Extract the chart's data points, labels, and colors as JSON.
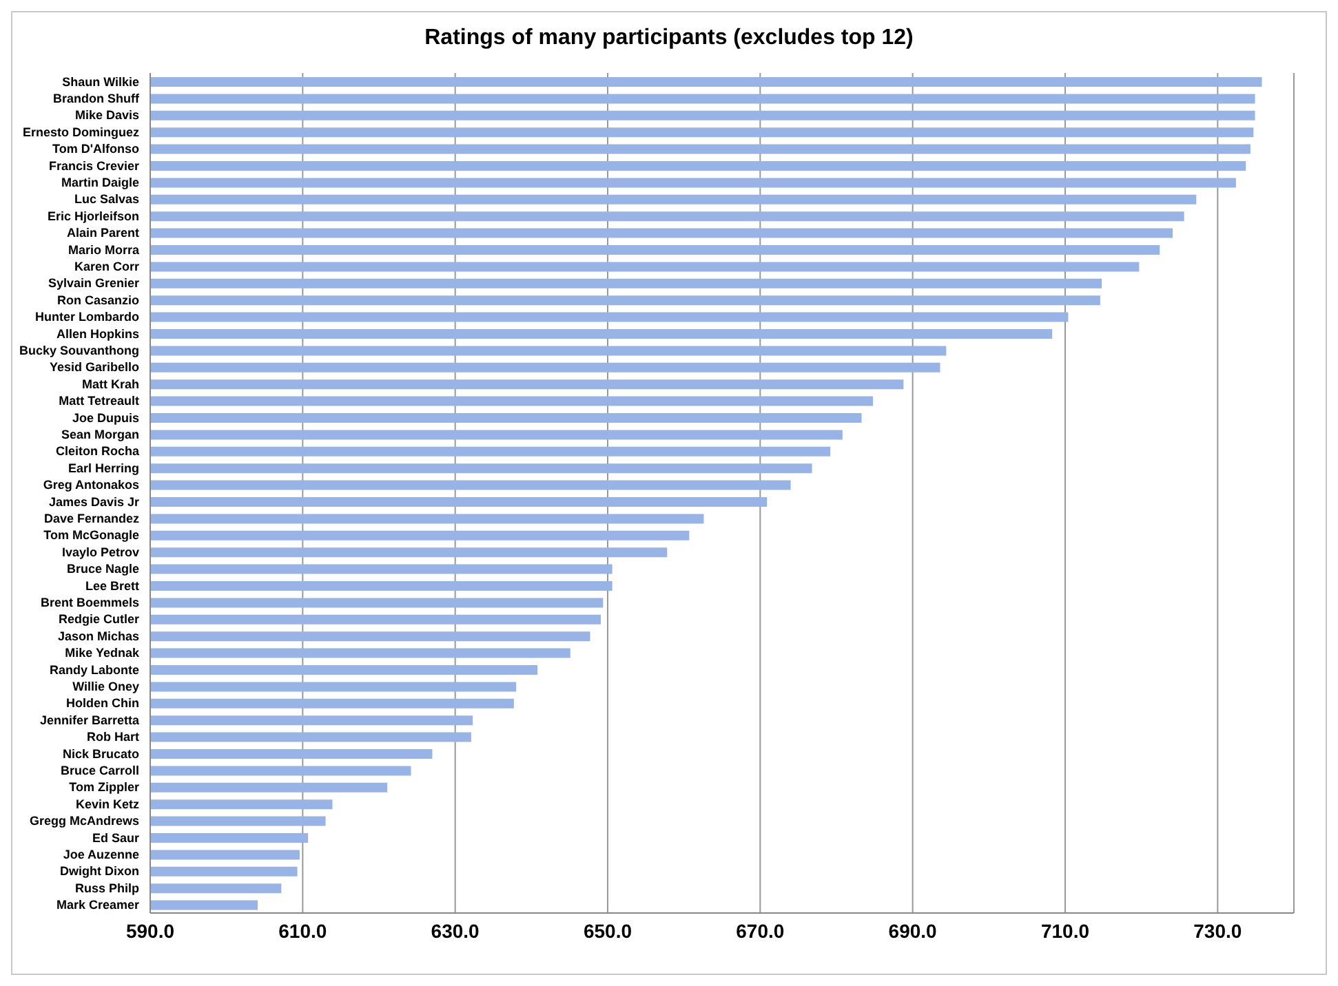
{
  "chart_data": {
    "type": "bar",
    "orientation": "horizontal",
    "title": "Ratings of many participants (excludes top 12)",
    "categories": [
      "Shaun Wilkie",
      "Brandon Shuff",
      "Mike Davis",
      "Ernesto Dominguez",
      "Tom D'Alfonso",
      "Francis Crevier",
      "Martin Daigle",
      "Luc Salvas",
      "Eric Hjorleifson",
      "Alain Parent",
      "Mario Morra",
      "Karen Corr",
      "Sylvain Grenier",
      "Ron Casanzio",
      "Hunter Lombardo",
      "Allen Hopkins",
      "Bucky Souvanthong",
      "Yesid Garibello",
      "Matt Krah",
      "Matt Tetreault",
      "Joe Dupuis",
      "Sean Morgan",
      "Cleiton Rocha",
      "Earl Herring",
      "Greg Antonakos",
      "James Davis Jr",
      "Dave Fernandez",
      "Tom McGonagle",
      "Ivaylo Petrov",
      "Bruce Nagle",
      "Lee Brett",
      "Brent Boemmels",
      "Redgie Cutler",
      "Jason Michas",
      "Mike Yednak",
      "Randy Labonte",
      "Willie Oney",
      "Holden Chin",
      "Jennifer Barretta",
      "Rob Hart",
      "Nick Brucato",
      "Bruce Carroll",
      "Tom Zippler",
      "Kevin Ketz",
      "Gregg McAndrews",
      "Ed Saur",
      "Joe Auzenne",
      "Dwight Dixon",
      "Russ Philp",
      "Mark Creamer"
    ],
    "values": [
      735.8,
      734.9,
      734.9,
      734.7,
      734.3,
      733.7,
      732.4,
      727.2,
      725.6,
      724.1,
      722.4,
      719.7,
      714.8,
      714.6,
      710.4,
      708.3,
      694.4,
      693.6,
      688.8,
      684.8,
      683.3,
      680.8,
      679.2,
      676.8,
      674.0,
      670.9,
      662.6,
      660.7,
      657.8,
      650.6,
      650.6,
      649.4,
      649.1,
      647.7,
      645.1,
      640.8,
      638.0,
      637.7,
      632.3,
      632.1,
      627.0,
      624.2,
      621.1,
      613.9,
      613.0,
      610.7,
      609.6,
      609.3,
      607.2,
      604.1
    ],
    "color": "#98b4e6",
    "xlim": [
      590,
      740
    ],
    "xticks": [
      {
        "value": 590,
        "label": "590.0"
      },
      {
        "value": 610,
        "label": "610.0"
      },
      {
        "value": 630,
        "label": "630.0"
      },
      {
        "value": 650,
        "label": "650.0"
      },
      {
        "value": 670,
        "label": "670.0"
      },
      {
        "value": 690,
        "label": "690.0"
      },
      {
        "value": 710,
        "label": "710.0"
      },
      {
        "value": 730,
        "label": "730.0"
      }
    ],
    "grid": "x",
    "legend": false
  }
}
